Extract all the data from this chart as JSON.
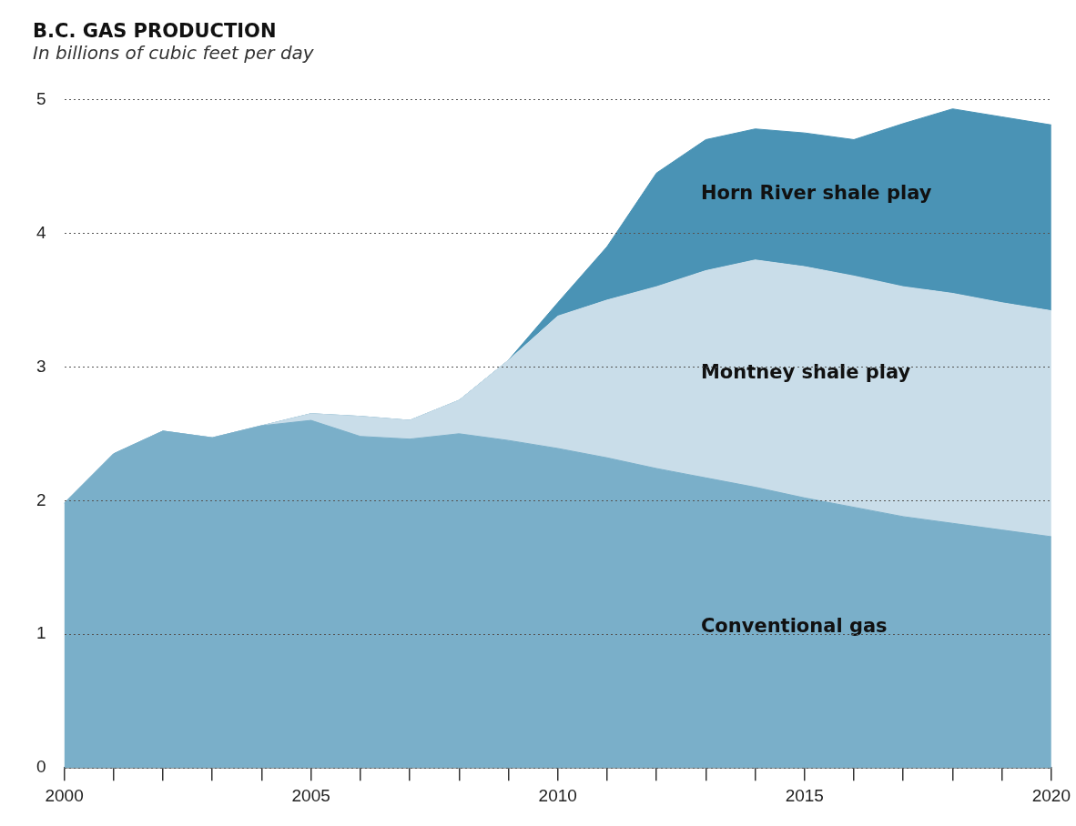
{
  "chart_data": {
    "type": "area",
    "title": "B.C. GAS PRODUCTION",
    "subtitle": "In billions of cubic feet per day",
    "stacked": true,
    "x": [
      2000,
      2001,
      2002,
      2003,
      2004,
      2005,
      2006,
      2007,
      2008,
      2009,
      2010,
      2011,
      2012,
      2013,
      2014,
      2015,
      2016,
      2017,
      2018,
      2019,
      2020
    ],
    "series": [
      {
        "name": "Conventional gas",
        "color": "#7aafc9",
        "values": [
          1.98,
          2.35,
          2.52,
          2.47,
          2.56,
          2.6,
          2.48,
          2.46,
          2.5,
          2.45,
          2.39,
          2.32,
          2.24,
          2.17,
          2.1,
          2.02,
          1.95,
          1.88,
          1.83,
          1.78,
          1.73
        ]
      },
      {
        "name": "Montney shale play",
        "color": "#c9dde9",
        "values": [
          0,
          0,
          0,
          0,
          0,
          0.05,
          0.15,
          0.14,
          0.25,
          0.6,
          0.99,
          1.18,
          1.36,
          1.55,
          1.7,
          1.73,
          1.73,
          1.72,
          1.72,
          1.7,
          1.69
        ]
      },
      {
        "name": "Horn River shale play",
        "color": "#4a93b5",
        "values": [
          0,
          0,
          0,
          0,
          0,
          0,
          0,
          0,
          0,
          0,
          0.1,
          0.4,
          0.85,
          0.98,
          0.98,
          1.0,
          1.02,
          1.22,
          1.38,
          1.39,
          1.39
        ]
      }
    ],
    "xlim": [
      2000,
      2020
    ],
    "xticks": [
      2000,
      {
        "value": 2001,
        "label": null
      },
      {
        "value": 2002,
        "label": null
      },
      {
        "value": 2003,
        "label": null
      },
      {
        "value": 2004,
        "label": null
      },
      2005,
      {
        "value": 2006,
        "label": null
      },
      {
        "value": 2007,
        "label": null
      },
      {
        "value": 2008,
        "label": null
      },
      {
        "value": 2009,
        "label": null
      },
      2010,
      {
        "value": 2011,
        "label": null
      },
      {
        "value": 2012,
        "label": null
      },
      {
        "value": 2013,
        "label": null
      },
      {
        "value": 2014,
        "label": null
      },
      2015,
      {
        "value": 2016,
        "label": null
      },
      {
        "value": 2017,
        "label": null
      },
      {
        "value": 2018,
        "label": null
      },
      {
        "value": 2019,
        "label": null
      },
      2020
    ],
    "ylim": [
      0,
      5
    ],
    "yticks": [
      0,
      1,
      2,
      3,
      4,
      5
    ],
    "grid": "y",
    "legend": false,
    "marker": "none"
  }
}
